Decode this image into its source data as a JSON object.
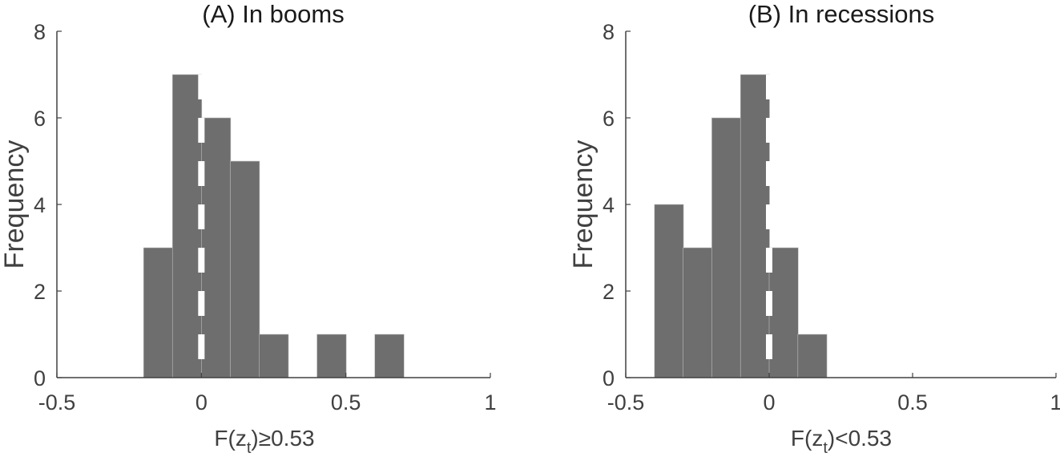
{
  "figure": {
    "bar_color": "#6e6e6e",
    "axis_color": "#404040",
    "title_color": "#1a1a1a",
    "zero_line_color": "#ffffff"
  },
  "chart_data": [
    {
      "type": "bar",
      "title": "(A) In booms",
      "xlabel": "F(z_t)≥0.53",
      "xlabel_main": "F(z",
      "xlabel_sub": "t",
      "xlabel_rest": ")≥0.53",
      "ylabel": "Frequency",
      "xlim": [
        -0.5,
        1
      ],
      "ylim": [
        0,
        8
      ],
      "xticks": [
        "-0.5",
        "0",
        "0.5",
        "1"
      ],
      "yticks": [
        "0",
        "2",
        "4",
        "6",
        "8"
      ],
      "bin_width": 0.1,
      "bin_edges": [
        -0.2,
        -0.1,
        0.0,
        0.1,
        0.2,
        0.3,
        0.4,
        0.5,
        0.6,
        0.7
      ],
      "values": [
        3,
        7,
        6,
        5,
        1,
        0,
        1,
        0,
        1
      ],
      "reference_line": {
        "x": 0,
        "style": "dashed",
        "color": "#ffffff"
      },
      "grid": false,
      "legend": null
    },
    {
      "type": "bar",
      "title": "(B) In recessions",
      "xlabel": "F(z_t)<0.53",
      "xlabel_main": "F(z",
      "xlabel_sub": "t",
      "xlabel_rest": ")<0.53",
      "ylabel": "Frequency",
      "xlim": [
        -0.5,
        1
      ],
      "ylim": [
        0,
        8
      ],
      "xticks": [
        "-0.5",
        "0",
        "0.5",
        "1"
      ],
      "yticks": [
        "0",
        "2",
        "4",
        "6",
        "8"
      ],
      "bin_width": 0.1,
      "bin_edges": [
        -0.4,
        -0.3,
        -0.2,
        -0.1,
        0.0,
        0.1,
        0.2
      ],
      "values": [
        4,
        3,
        6,
        7,
        3,
        1
      ],
      "reference_line": {
        "x": 0,
        "style": "dashed",
        "color": "#ffffff"
      },
      "grid": false,
      "legend": null
    }
  ]
}
